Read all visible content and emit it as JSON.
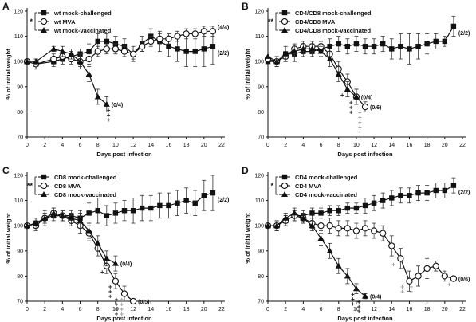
{
  "chart_data": [
    {
      "type": "line",
      "panel_label": "A",
      "xlabel": "Days post infection",
      "ylabel": "% of initial weight",
      "xlim": [
        0,
        22
      ],
      "ylim": [
        70,
        120
      ],
      "xticks": [
        0,
        2,
        4,
        6,
        8,
        10,
        12,
        14,
        16,
        18,
        20,
        22
      ],
      "yticks": [
        70,
        80,
        90,
        100,
        110,
        120
      ],
      "legend_location": "top-left",
      "significance": "*",
      "series": [
        {
          "name": "wt mock-challenged",
          "marker": "square",
          "x": [
            0,
            1,
            3,
            4,
            5,
            6,
            7,
            8,
            9,
            10,
            11,
            12,
            13,
            14,
            15,
            16,
            17,
            18,
            19,
            20,
            21
          ],
          "y": [
            100,
            99,
            100,
            101,
            102,
            103,
            104,
            108,
            108,
            107,
            106,
            103,
            107,
            110,
            108,
            106,
            105,
            104,
            104,
            105,
            106
          ],
          "err": [
            0,
            2,
            2,
            2,
            2,
            2,
            3,
            3,
            3,
            3,
            3,
            3,
            3,
            3,
            4,
            4,
            5,
            6,
            6,
            7,
            7
          ],
          "end_label": "(2/2)"
        },
        {
          "name": "wt MVA",
          "marker": "circle",
          "x": [
            0,
            1,
            3,
            4,
            5,
            6,
            7,
            8,
            9,
            10,
            11,
            12,
            13,
            14,
            15,
            16,
            17,
            18,
            19,
            20,
            21
          ],
          "y": [
            100,
            99,
            101,
            102,
            101,
            100,
            101,
            104,
            105,
            105,
            104,
            103,
            106,
            108,
            109,
            109,
            110,
            111,
            111,
            112,
            112
          ],
          "err": [
            0,
            2,
            2,
            2,
            2,
            2,
            2,
            2,
            2,
            2,
            2,
            2,
            2,
            2,
            2,
            2,
            2,
            2,
            2,
            2,
            2
          ],
          "end_label": "(4/4)"
        },
        {
          "name": "wt mock-vaccinated",
          "marker": "triangle",
          "x": [
            0,
            1,
            3,
            4,
            5,
            6,
            7,
            8,
            9
          ],
          "y": [
            100,
            100,
            105,
            104,
            103,
            100,
            95,
            86,
            83
          ],
          "err": [
            0,
            1,
            1,
            2,
            2,
            3,
            3,
            3,
            3
          ],
          "end_label": "(0/4)"
        }
      ],
      "death_marks": [
        {
          "x": 9.2,
          "count": 3,
          "color": "#222222"
        }
      ]
    },
    {
      "type": "line",
      "panel_label": "B",
      "xlabel": "Days post infection",
      "ylabel": "% of initial weight",
      "xlim": [
        0,
        22
      ],
      "ylim": [
        70,
        120
      ],
      "xticks": [
        0,
        2,
        4,
        6,
        8,
        10,
        12,
        14,
        16,
        18,
        20,
        22
      ],
      "yticks": [
        70,
        80,
        90,
        100,
        110,
        120
      ],
      "legend_location": "top-left",
      "significance": "**",
      "series": [
        {
          "name": "CD4/CD8 mock-challenged",
          "marker": "square",
          "x": [
            0,
            1,
            2,
            3,
            4,
            5,
            6,
            7,
            8,
            9,
            10,
            11,
            12,
            13,
            14,
            15,
            16,
            17,
            18,
            19,
            20,
            21
          ],
          "y": [
            100,
            100,
            103,
            103,
            104,
            104,
            105,
            106,
            107,
            106,
            107,
            106,
            106,
            107,
            105,
            106,
            105,
            106,
            107,
            108,
            108,
            114
          ],
          "err": [
            0,
            2,
            3,
            3,
            2,
            2,
            3,
            3,
            3,
            3,
            3,
            3,
            3,
            3,
            4,
            5,
            6,
            5,
            4,
            3,
            2,
            4
          ],
          "end_label": "(2/2)"
        },
        {
          "name": "CD4/CD8 MVA",
          "marker": "circle",
          "x": [
            0,
            1,
            2,
            3,
            4,
            5,
            6,
            7,
            8,
            9,
            10,
            11
          ],
          "y": [
            101,
            100,
            102,
            105,
            106,
            106,
            106,
            103,
            97,
            92,
            86,
            82
          ],
          "err": [
            0,
            2,
            2,
            2,
            2,
            2,
            2,
            2,
            3,
            3,
            3,
            2
          ],
          "end_label": "(0/6)"
        },
        {
          "name": "CD4/CD8 mock-vaccinated",
          "marker": "triangle",
          "x": [
            0,
            1,
            2,
            3,
            4,
            5,
            6,
            7,
            8,
            9,
            10
          ],
          "y": [
            102,
            100,
            103,
            104,
            105,
            105,
            104,
            101,
            95,
            89,
            86
          ],
          "err": [
            0,
            2,
            2,
            2,
            2,
            2,
            2,
            3,
            3,
            3,
            3
          ],
          "end_label": "(0/4)"
        }
      ],
      "death_marks": [
        {
          "x": 8.4,
          "count": 1,
          "color": "#222222"
        },
        {
          "x": 9.4,
          "count": 3,
          "color": "#222222"
        },
        {
          "x": 10.4,
          "count": 6,
          "color": "#9a9a9a"
        }
      ]
    },
    {
      "type": "line",
      "panel_label": "C",
      "xlabel": "Days post infection",
      "ylabel": "% of initial weight",
      "xlim": [
        0,
        22
      ],
      "ylim": [
        70,
        120
      ],
      "xticks": [
        0,
        2,
        4,
        6,
        8,
        10,
        12,
        14,
        16,
        18,
        20,
        22
      ],
      "yticks": [
        70,
        80,
        90,
        100,
        110,
        120
      ],
      "legend_location": "top-left",
      "significance": "**",
      "series": [
        {
          "name": "CD8 mock-challenged",
          "marker": "square",
          "x": [
            0,
            1,
            2,
            3,
            4,
            5,
            6,
            7,
            8,
            9,
            10,
            11,
            12,
            13,
            14,
            15,
            16,
            17,
            18,
            19,
            20,
            21
          ],
          "y": [
            100,
            101,
            103,
            104,
            104,
            104,
            103,
            105,
            106,
            104,
            105,
            106,
            106,
            107,
            107,
            108,
            108,
            109,
            110,
            109,
            112,
            113
          ],
          "err": [
            0,
            2,
            3,
            2,
            2,
            2,
            3,
            4,
            5,
            4,
            4,
            4,
            5,
            5,
            5,
            5,
            5,
            5,
            5,
            5,
            6,
            7
          ],
          "end_label": "(2/2)"
        },
        {
          "name": "CD8 MVA",
          "marker": "circle",
          "x": [
            0,
            1,
            2,
            3,
            4,
            5,
            6,
            7,
            8,
            9,
            10,
            11,
            12
          ],
          "y": [
            100,
            100,
            103,
            105,
            104,
            102,
            100,
            97,
            91,
            84,
            78,
            73,
            70
          ],
          "err": [
            0,
            2,
            2,
            2,
            2,
            2,
            3,
            3,
            3,
            3,
            3,
            3,
            1
          ],
          "end_label": "(0/5)"
        },
        {
          "name": "CD8 mock-vaccinated",
          "marker": "triangle",
          "x": [
            0,
            1,
            2,
            3,
            4,
            5,
            6,
            7,
            8,
            9,
            10
          ],
          "y": [
            100,
            101,
            103,
            105,
            104,
            103,
            102,
            98,
            93,
            87,
            85
          ],
          "err": [
            0,
            2,
            2,
            2,
            2,
            2,
            3,
            3,
            3,
            3,
            3
          ],
          "end_label": "(0/4)"
        }
      ],
      "death_marks": [
        {
          "x": 8.5,
          "count": 1,
          "color": "#222222"
        },
        {
          "x": 9.4,
          "count": 3,
          "color": "#222222"
        },
        {
          "x": 10.1,
          "count": 4,
          "color": "#222222"
        },
        {
          "x": 10.7,
          "count": 5,
          "color": "#9a9a9a"
        }
      ]
    },
    {
      "type": "line",
      "panel_label": "D",
      "xlabel": "Days post infection",
      "ylabel": "% of initial weight",
      "xlim": [
        0,
        22
      ],
      "ylim": [
        70,
        120
      ],
      "xticks": [
        0,
        2,
        4,
        6,
        8,
        10,
        12,
        14,
        16,
        18,
        20,
        22
      ],
      "yticks": [
        70,
        80,
        90,
        100,
        110,
        120
      ],
      "legend_location": "top-left",
      "significance": "*",
      "series": [
        {
          "name": "CD4 mock-challenged",
          "marker": "square",
          "x": [
            0,
            1,
            2,
            3,
            4,
            5,
            6,
            7,
            8,
            9,
            10,
            11,
            12,
            13,
            14,
            15,
            16,
            17,
            18,
            19,
            20,
            21
          ],
          "y": [
            100,
            100,
            102,
            104,
            104,
            105,
            105,
            106,
            106,
            107,
            107,
            108,
            109,
            110,
            111,
            112,
            112,
            113,
            113,
            114,
            114,
            116
          ],
          "err": [
            0,
            2,
            2,
            2,
            2,
            2,
            2,
            2,
            2,
            2,
            2,
            3,
            3,
            3,
            3,
            3,
            3,
            3,
            3,
            3,
            3,
            3
          ],
          "end_label": "(2/2)"
        },
        {
          "name": "CD4 MVA",
          "marker": "circle",
          "x": [
            0,
            1,
            2,
            3,
            4,
            5,
            6,
            7,
            8,
            9,
            10,
            11,
            12,
            13,
            14,
            15,
            16,
            17,
            18,
            19,
            20,
            21
          ],
          "y": [
            100,
            100,
            102,
            104,
            103,
            101,
            100,
            100,
            99,
            99,
            98,
            99,
            98,
            97,
            92,
            87,
            78,
            80,
            83,
            84,
            80,
            79
          ],
          "err": [
            0,
            2,
            2,
            2,
            2,
            2,
            3,
            3,
            3,
            3,
            3,
            3,
            3,
            3,
            4,
            4,
            4,
            4,
            4,
            2,
            2,
            1
          ],
          "end_label": "(0/6)"
        },
        {
          "name": "CD4 mock-vaccinated",
          "marker": "triangle",
          "x": [
            0,
            1,
            2,
            3,
            4,
            5,
            6,
            7,
            8,
            9,
            10,
            11
          ],
          "y": [
            100,
            100,
            103,
            105,
            103,
            100,
            95,
            90,
            84,
            80,
            75,
            72
          ],
          "err": [
            0,
            2,
            2,
            2,
            2,
            2,
            3,
            3,
            3,
            3,
            2,
            1
          ],
          "end_label": "(0/4)"
        }
      ],
      "death_marks": [
        {
          "x": 9.6,
          "count": 3,
          "color": "#222222"
        },
        {
          "x": 10.3,
          "count": 3,
          "color": "#222222"
        },
        {
          "x": 14.2,
          "count": 1,
          "color": "#9a9a9a"
        },
        {
          "x": 15.2,
          "count": 2,
          "color": "#9a9a9a"
        },
        {
          "x": 16.2,
          "count": 2,
          "color": "#9a9a9a"
        },
        {
          "x": 20.5,
          "count": 1,
          "color": "#9a9a9a"
        }
      ]
    }
  ]
}
